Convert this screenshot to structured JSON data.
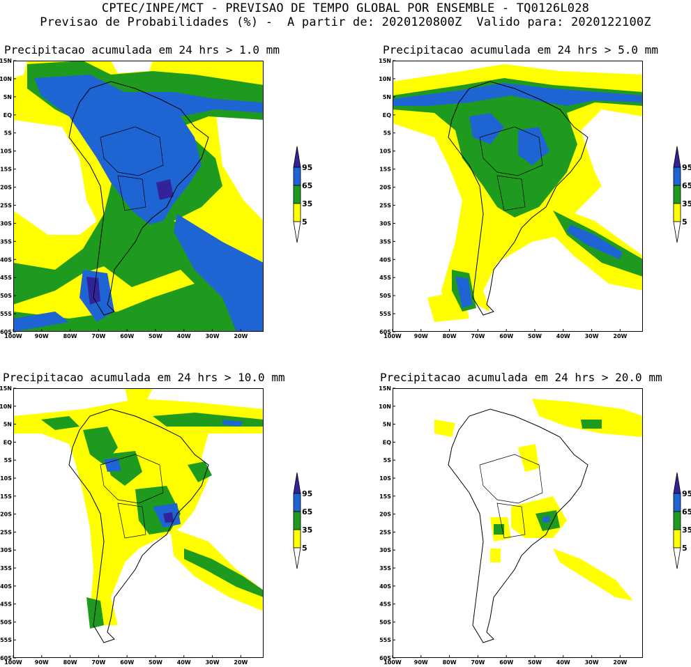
{
  "header": {
    "line1": "CPTEC/INPE/MCT - PREVISAO DE TEMPO GLOBAL POR ENSEMBLE - TQ0126L028",
    "line2": "Previsao de Probabilidades (%) -  A partir de: 2020120800Z  Valido para: 2020122100Z"
  },
  "panels": [
    {
      "title": "Precipitacao acumulada em 24 hrs > 1.0 mm"
    },
    {
      "title": "Precipitacao acumulada em 24 hrs > 5.0 mm"
    },
    {
      "title": "Precipitacao acumulada em 24 hrs > 10.0 mm"
    },
    {
      "title": "Precipitacao acumulada em 24 hrs > 20.0 mm"
    }
  ],
  "axes": {
    "lat_labels": [
      "15N",
      "10N",
      "5N",
      "EQ",
      "5S",
      "10S",
      "15S",
      "20S",
      "25S",
      "30S",
      "35S",
      "40S",
      "45S",
      "50S",
      "55S",
      "60S"
    ],
    "lon_labels": [
      "100W",
      "90W",
      "80W",
      "70W",
      "60W",
      "50W",
      "40W",
      "30W",
      "20W"
    ]
  },
  "colorbar": {
    "labels": [
      "95",
      "65",
      "35",
      "5"
    ],
    "colors": {
      "level_5_35": "#ffff00",
      "level_35_65": "#1e9b1e",
      "level_65_95": "#1e64d2",
      "level_95_plus": "#32239b",
      "below_5": "#ffffff"
    }
  },
  "colors": {
    "coast": "#000000",
    "background": "#ffffff"
  }
}
